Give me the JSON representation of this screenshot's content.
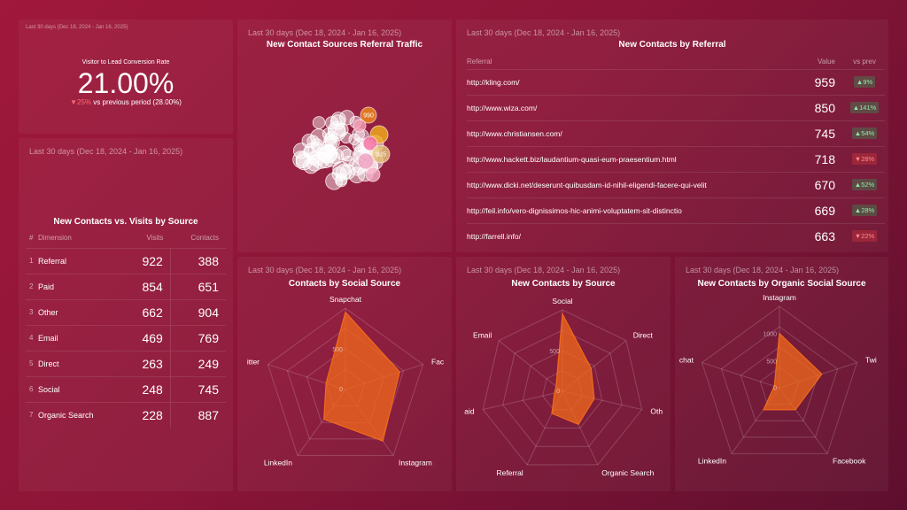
{
  "kpi": {
    "period": "Last 30 days (Dec 18, 2024 - Jan 16, 2025)",
    "label": "Visitor to Lead Conversion Rate",
    "value": "21.00%",
    "change": "▼25%",
    "compare": "vs previous period (28.00%)"
  },
  "visits": {
    "period": "Last 30 days (Dec 18, 2024 - Jan 16, 2025)",
    "title": "New Contacts vs. Visits by Source",
    "headers": [
      "#",
      "Dimension",
      "Visits",
      "Contacts"
    ],
    "rows": [
      {
        "idx": "1",
        "dim": "Referral",
        "visits": "922",
        "contacts": "388"
      },
      {
        "idx": "2",
        "dim": "Paid",
        "visits": "854",
        "contacts": "651"
      },
      {
        "idx": "3",
        "dim": "Other",
        "visits": "662",
        "contacts": "904"
      },
      {
        "idx": "4",
        "dim": "Email",
        "visits": "469",
        "contacts": "769"
      },
      {
        "idx": "5",
        "dim": "Direct",
        "visits": "263",
        "contacts": "249"
      },
      {
        "idx": "6",
        "dim": "Social",
        "visits": "248",
        "contacts": "745"
      },
      {
        "idx": "7",
        "dim": "Organic Search",
        "visits": "228",
        "contacts": "887"
      }
    ]
  },
  "bubble": {
    "period": "Last 30 days (Dec 18, 2024 - Jan 16, 2025)",
    "title": "New Contact Sources Referral Traffic",
    "labels": [
      "990",
      "935"
    ]
  },
  "referral": {
    "period": "Last 30 days (Dec 18, 2024 - Jan 16, 2025)",
    "title": "New Contacts by Referral",
    "headers": [
      "Referral",
      "Value",
      "vs prev"
    ],
    "rows": [
      {
        "url": "http://kling.com/",
        "value": "959",
        "change": "▲9%",
        "dir": "up"
      },
      {
        "url": "http://www.wiza.com/",
        "value": "850",
        "change": "▲141%",
        "dir": "up"
      },
      {
        "url": "http://www.christiansen.com/",
        "value": "745",
        "change": "▲54%",
        "dir": "up"
      },
      {
        "url": "http://www.hackett.biz/laudantium-quasi-eum-praesentium.html",
        "value": "718",
        "change": "▼28%",
        "dir": "down"
      },
      {
        "url": "http://www.dicki.net/deserunt-quibusdam-id-nihil-eligendi-facere-qui-velit",
        "value": "670",
        "change": "▲52%",
        "dir": "up"
      },
      {
        "url": "http://feil.info/vero-dignissimos-hic-animi-voluptatem-sit-distinctio",
        "value": "669",
        "change": "▲28%",
        "dir": "up"
      },
      {
        "url": "http://farrell.info/",
        "value": "663",
        "change": "▼22%",
        "dir": "down"
      }
    ]
  },
  "colors": {
    "accent": "#f26a1b",
    "positive": "#8ee9a8",
    "negative": "#ff6b6b"
  },
  "chart_data": [
    {
      "id": "social",
      "type": "radar",
      "period": "Last 30 days (Dec 18, 2024 - Jan 16, 2025)",
      "title": "Contacts by Social Source",
      "axes": [
        "Snapchat",
        "Fac",
        "Instagram",
        "LinkedIn",
        "itter"
      ],
      "values": [
        950,
        700,
        780,
        450,
        250
      ],
      "ticks": [
        "0",
        "500"
      ],
      "max": 1000
    },
    {
      "id": "source",
      "type": "radar",
      "period": "Last 30 days (Dec 18, 2024 - Jan 16, 2025)",
      "title": "New Contacts by Source",
      "axes": [
        "Social",
        "Direct",
        "Oth",
        "Organic Search",
        "Referral",
        "aid",
        "Email"
      ],
      "values": [
        950,
        450,
        400,
        450,
        300,
        100,
        100
      ],
      "ticks": [
        "0",
        "500"
      ],
      "max": 1000
    },
    {
      "id": "organic",
      "type": "radar",
      "period": "Last 30 days (Dec 18, 2024 - Jan 16, 2025)",
      "title": "New Contacts by Organic Social Source",
      "axes": [
        "Instagram",
        "Twi",
        "Facebook",
        "LinkedIn",
        "chat"
      ],
      "values": [
        1000,
        820,
        500,
        500,
        100
      ],
      "ticks": [
        "0",
        "500",
        "1000"
      ],
      "max": 1500
    }
  ]
}
